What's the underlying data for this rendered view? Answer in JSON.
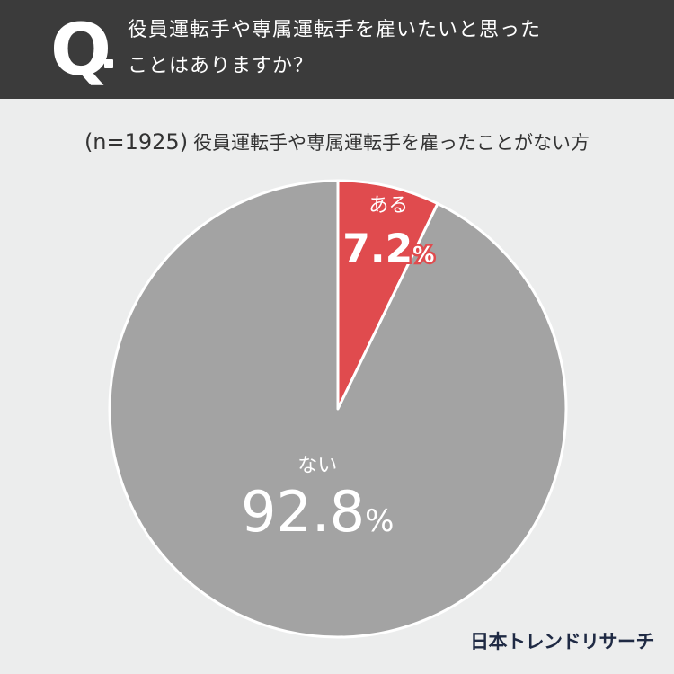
{
  "header": {
    "q_mark": "Q",
    "question_line1": "役員運転手や専属運転手を雇いたいと思った",
    "question_line2": "ことはありますか？"
  },
  "subtitle": {
    "n_label": "(n=1925)",
    "text": "役員運転手や専属運転手を雇ったことがない方"
  },
  "chart_data": {
    "type": "pie",
    "start_angle": "12 o'clock, clockwise",
    "slices": [
      {
        "label": "ある",
        "value": 7.2,
        "value_text": "7.2",
        "percent_sign": "%",
        "color": "#e04b4e"
      },
      {
        "label": "ない",
        "value": 92.8,
        "value_text": "92.8",
        "percent_sign": "%",
        "color": "#a3a3a3"
      }
    ]
  },
  "brand": {
    "text": "日本トレンドリサーチ",
    "color": "#1f2a44"
  }
}
